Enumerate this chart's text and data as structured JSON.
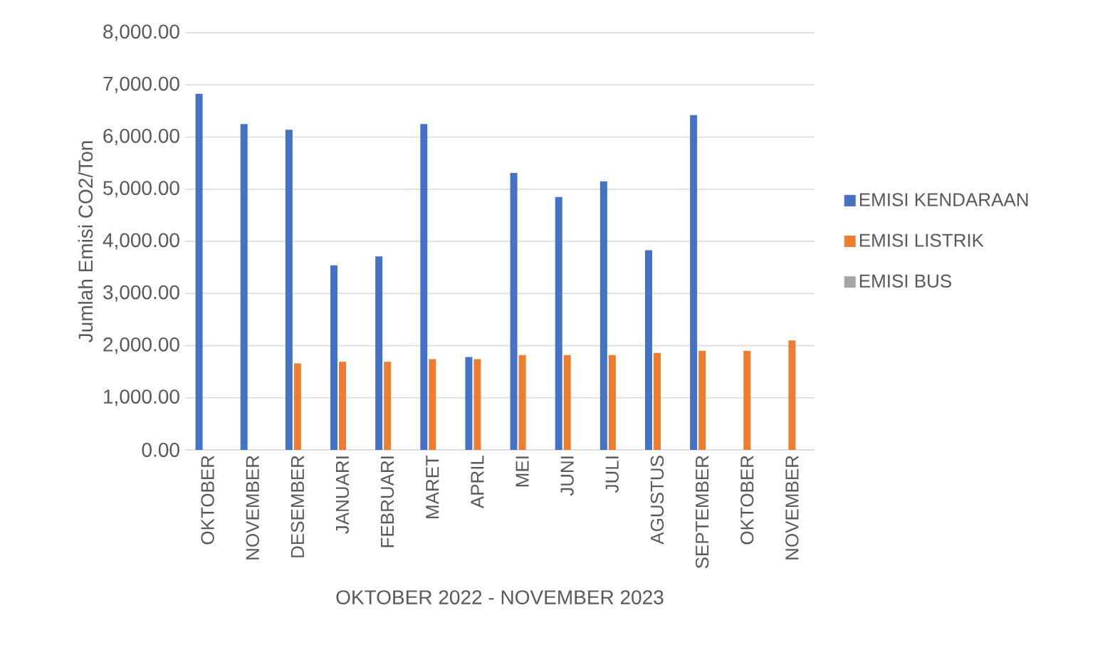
{
  "chart_data": {
    "type": "bar",
    "xlabel": "OKTOBER 2022 - NOVEMBER 2023",
    "ylabel": "Jumlah Emisi CO2/Ton",
    "categories": [
      "OKTOBER",
      "NOVEMBER",
      "DESEMBER",
      "JANUARI",
      "FEBRUARI",
      "MARET",
      "APRIL",
      "MEI",
      "JUNI",
      "JULI",
      "AGUSTUS",
      "SEPTEMBER",
      "OKTOBER",
      "NOVEMBER"
    ],
    "series": [
      {
        "name": "EMISI KENDARAAN",
        "color": "#4472c4",
        "values": [
          6830,
          6250,
          6140,
          3540,
          3710,
          6250,
          1780,
          5310,
          4850,
          5150,
          3830,
          6420,
          null,
          null
        ]
      },
      {
        "name": "EMISI LISTRIK",
        "color": "#ed7d31",
        "values": [
          null,
          null,
          1660,
          1690,
          1690,
          1740,
          1740,
          1820,
          1820,
          1820,
          1860,
          1900,
          1900,
          2100
        ]
      },
      {
        "name": "EMISI BUS",
        "color": "#a5a5a5",
        "values": [
          null,
          null,
          null,
          null,
          null,
          null,
          null,
          null,
          null,
          null,
          null,
          null,
          null,
          null
        ]
      }
    ],
    "ylim": [
      0,
      8000
    ],
    "yticks": [
      {
        "value": 0,
        "label": "0.00"
      },
      {
        "value": 1000,
        "label": "1,000.00"
      },
      {
        "value": 2000,
        "label": "2,000.00"
      },
      {
        "value": 3000,
        "label": "3,000.00"
      },
      {
        "value": 4000,
        "label": "4,000.00"
      },
      {
        "value": 5000,
        "label": "5,000.00"
      },
      {
        "value": 6000,
        "label": "6,000.00"
      },
      {
        "value": 7000,
        "label": "7,000.00"
      },
      {
        "value": 8000,
        "label": "8,000.00"
      }
    ],
    "grid": "y",
    "legend": "right"
  }
}
